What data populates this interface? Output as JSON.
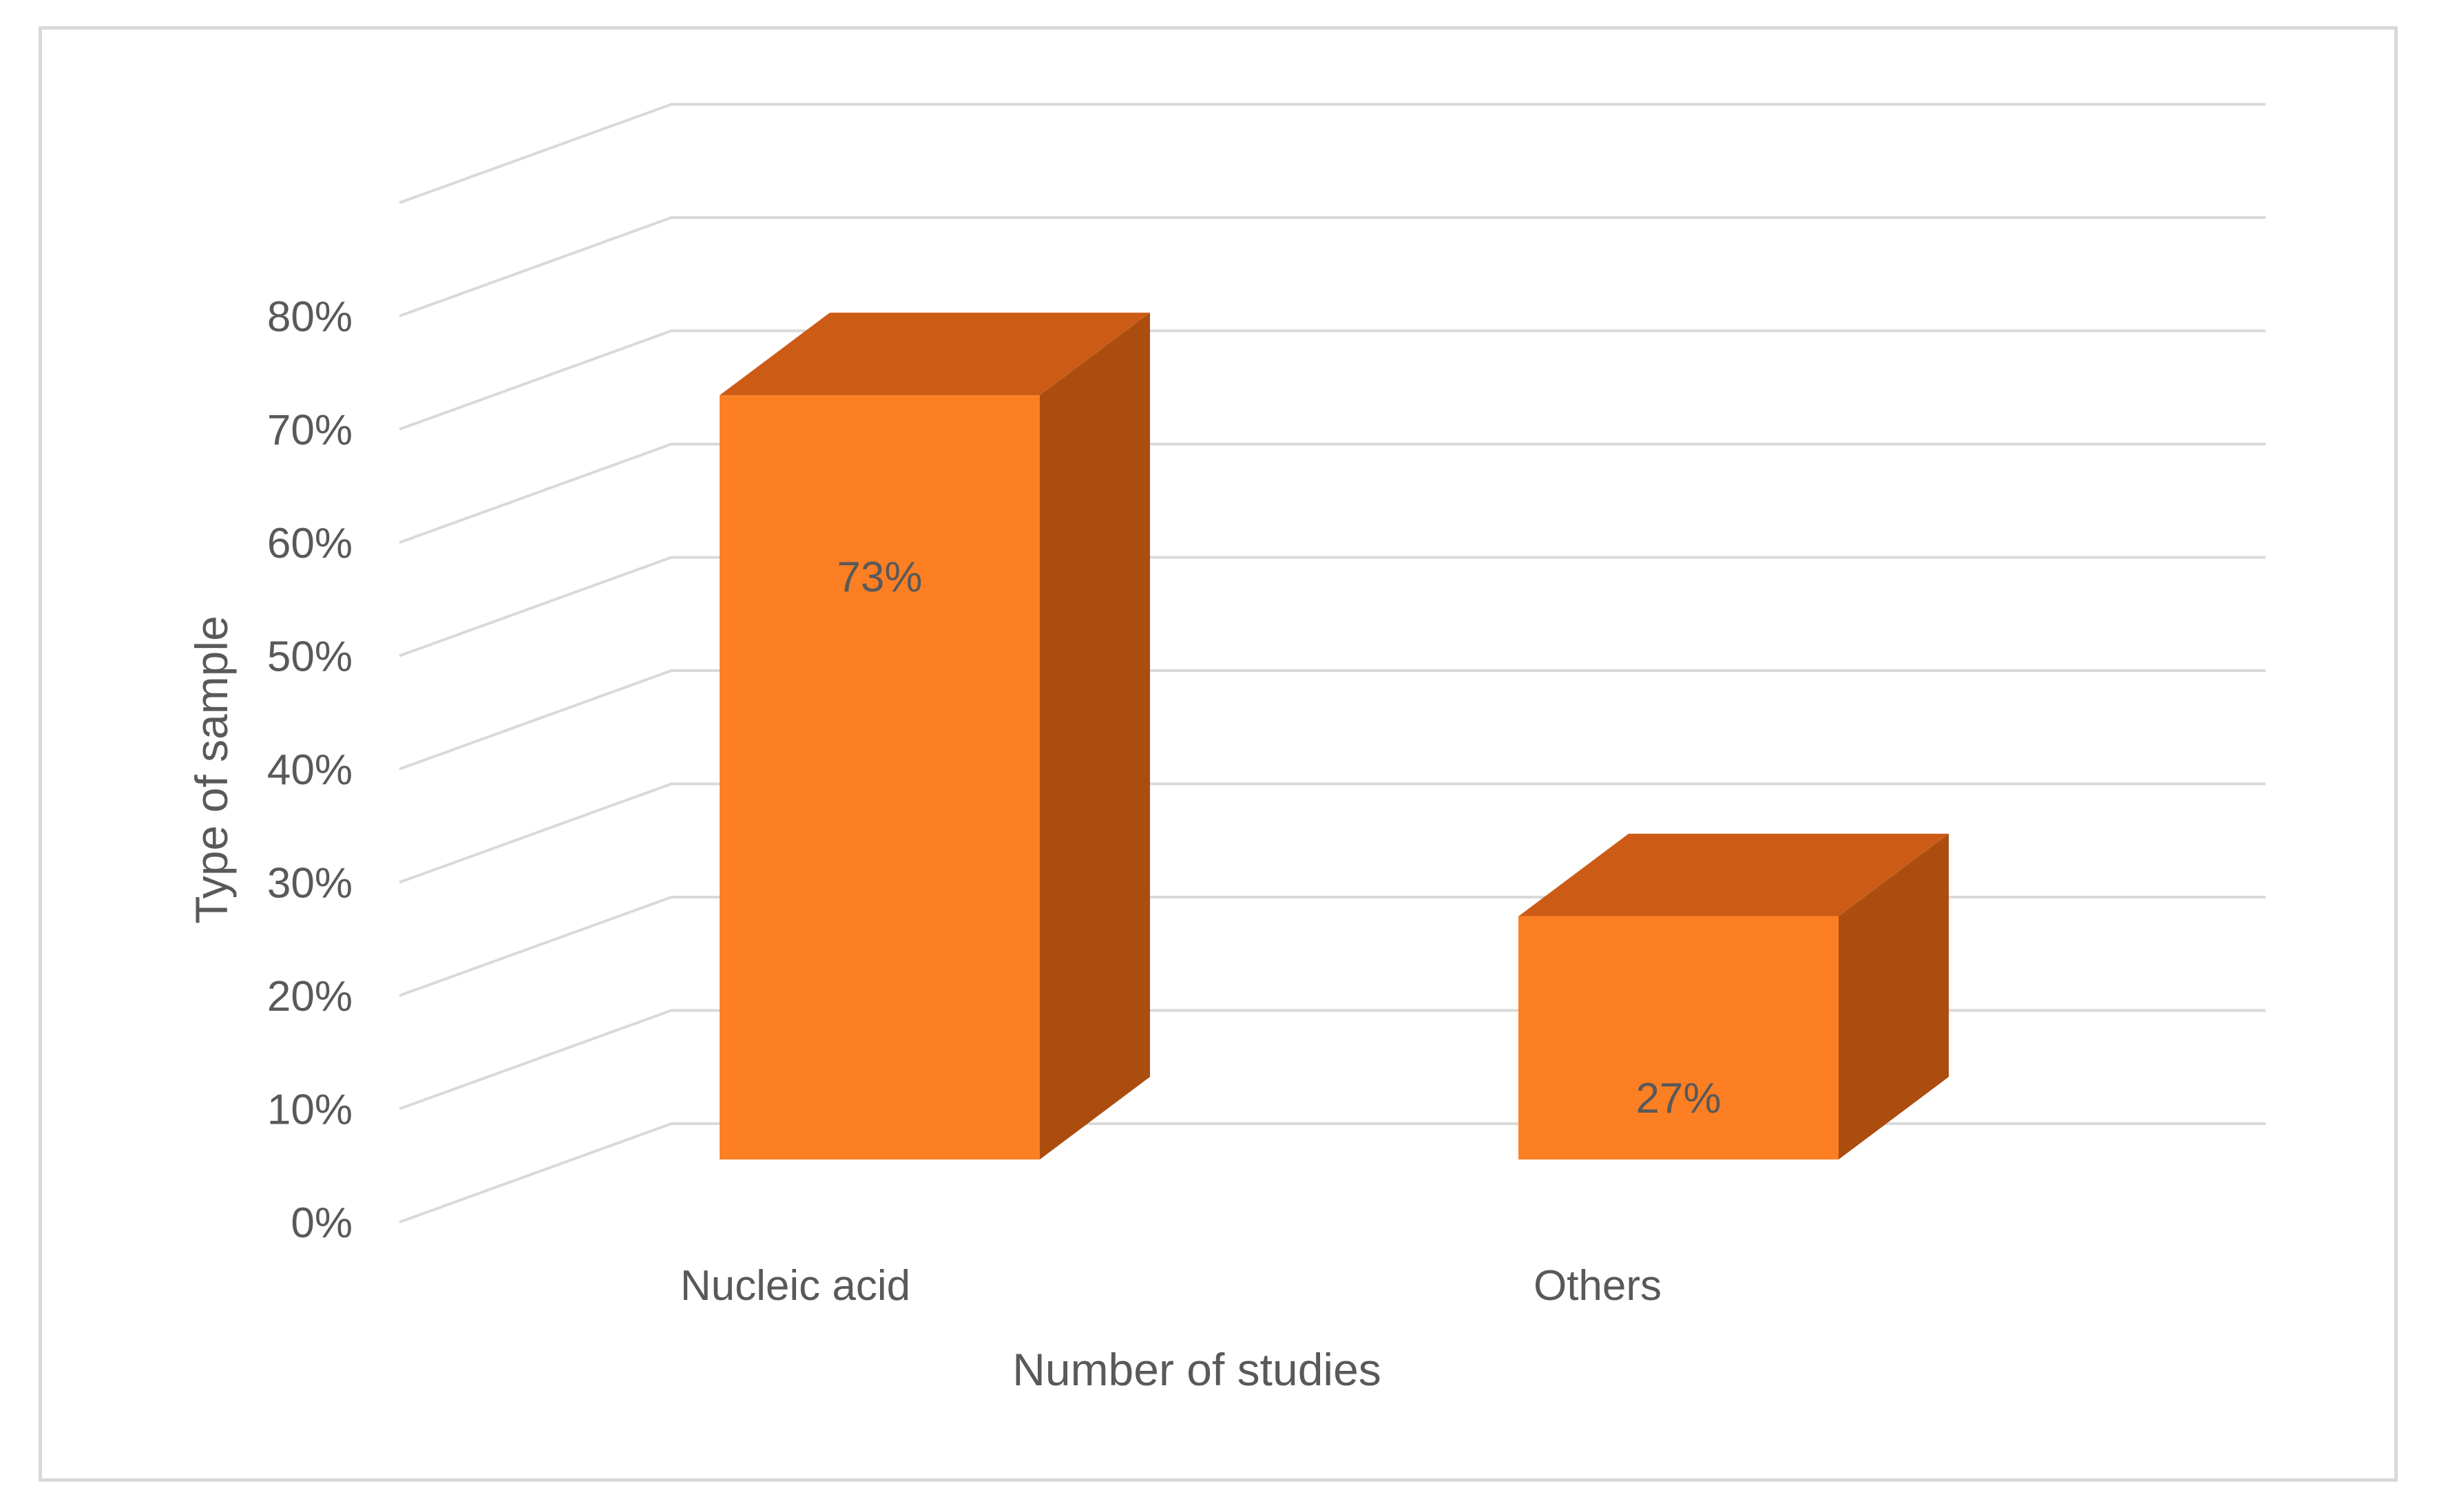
{
  "chart_data": {
    "type": "bar",
    "style": "3d-column",
    "title": "",
    "xlabel": "Number of studies",
    "ylabel": "Type of sample",
    "categories": [
      "Nucleic acid",
      "Others"
    ],
    "values": [
      73,
      27
    ],
    "data_labels": [
      "73%",
      "27%"
    ],
    "ylim": [
      0,
      80
    ],
    "yticks": [
      0,
      10,
      20,
      30,
      40,
      50,
      60,
      70,
      80
    ],
    "ytick_labels": [
      "0%",
      "10%",
      "20%",
      "30%",
      "40%",
      "50%",
      "60%",
      "70%",
      "80%"
    ],
    "grid": true,
    "legend": "none",
    "colors": {
      "bar_front": "#fd7f23",
      "bar_top": "#cc5c15",
      "bar_side": "#ac4d10",
      "grid": "#d9d9d9",
      "text": "#595959",
      "border": "#d9d9d9"
    }
  }
}
